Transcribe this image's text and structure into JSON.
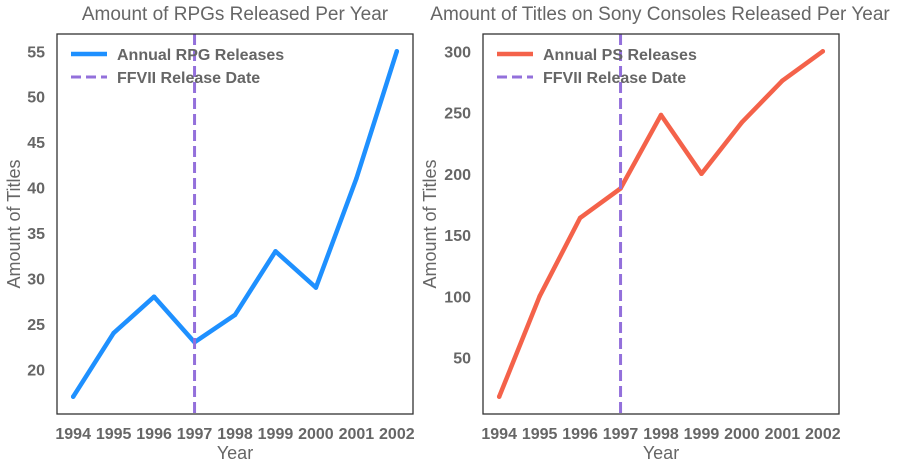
{
  "chart_data": [
    {
      "type": "line",
      "title": "Amount of RPGs Released Per Year",
      "xlabel": "Year",
      "ylabel": "Amount of Titles",
      "x": [
        1994,
        1995,
        1996,
        1997,
        1998,
        1999,
        2000,
        2001,
        2002
      ],
      "x_tick_labels": [
        "1994",
        "1995",
        "1996",
        "1997",
        "1998",
        "1999",
        "2000",
        "2001",
        "2002"
      ],
      "y_ticks": [
        20,
        25,
        30,
        35,
        40,
        45,
        50,
        55
      ],
      "y_tick_labels": [
        "20",
        "25",
        "30",
        "35",
        "40",
        "45",
        "50",
        "55"
      ],
      "xlim": [
        1993.6,
        2002.4
      ],
      "ylim": [
        15.1,
        56.9
      ],
      "grid": false,
      "legend_position": "top-left",
      "series": [
        {
          "name": "Annual RPG Releases",
          "color": "#1e90ff",
          "style": "solid",
          "values": [
            17,
            24,
            28,
            23,
            26,
            33,
            29,
            41,
            55
          ]
        }
      ],
      "vlines": [
        {
          "name": "FFVII Release Date",
          "x": 1997,
          "color": "#9370db",
          "style": "dashed"
        }
      ]
    },
    {
      "type": "line",
      "title": "Amount of Titles on Sony Consoles Released Per Year",
      "xlabel": "Year",
      "ylabel": "Amount of Titles",
      "x": [
        1994,
        1995,
        1996,
        1997,
        1998,
        1999,
        2000,
        2001,
        2002
      ],
      "x_tick_labels": [
        "1994",
        "1995",
        "1996",
        "1997",
        "1998",
        "1999",
        "2000",
        "2001",
        "2002"
      ],
      "y_ticks": [
        50,
        100,
        150,
        200,
        250,
        300
      ],
      "y_tick_labels": [
        "50",
        "100",
        "150",
        "200",
        "250",
        "300"
      ],
      "xlim": [
        1993.6,
        2002.4
      ],
      "ylim": [
        3.9,
        314.1
      ],
      "grid": false,
      "legend_position": "top-left",
      "series": [
        {
          "name": "Annual PS Releases",
          "color": "#f4624a",
          "style": "solid",
          "values": [
            18,
            100,
            164,
            188,
            248,
            200,
            242,
            276,
            300
          ]
        }
      ],
      "vlines": [
        {
          "name": "FFVII Release Date",
          "x": 1997,
          "color": "#9370db",
          "style": "dashed"
        }
      ]
    }
  ]
}
